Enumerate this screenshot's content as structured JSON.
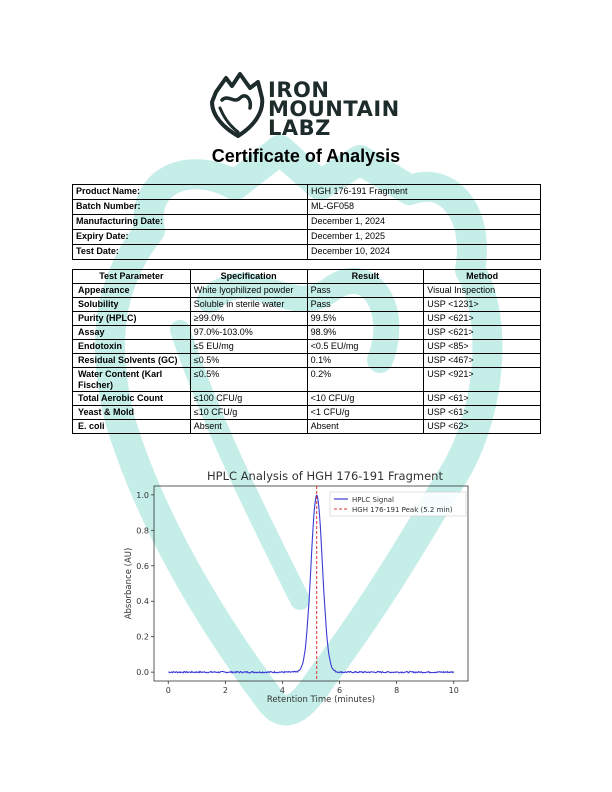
{
  "brand": {
    "line1": "IRON",
    "line2": "MOUNTAIN",
    "line3": "LABZ",
    "logo_icon": "mountain-heart-logo",
    "watermark_icon": "mountain-heart-watermark",
    "watermark_color": "#7fd9cf"
  },
  "title": "Certificate of Analysis",
  "product_info": [
    {
      "label": "Product Name:",
      "value": "HGH 176-191 Fragment"
    },
    {
      "label": "Batch Number:",
      "value": "ML-GF058"
    },
    {
      "label": "Manufacturing Date:",
      "value": "December 1, 2024"
    },
    {
      "label": "Expiry Date:",
      "value": "December 1, 2025"
    },
    {
      "label": "Test Date:",
      "value": "December 10, 2024"
    }
  ],
  "tests": {
    "headers": [
      "Test Parameter",
      "Specification",
      "Result",
      "Method"
    ],
    "rows": [
      {
        "parameter": "Appearance",
        "specification": "White lyophilized powder",
        "result": "Pass",
        "method": "Visual Inspection"
      },
      {
        "parameter": "Solubility",
        "specification": "Soluble in sterile water",
        "result": "Pass",
        "method": "USP <1231>"
      },
      {
        "parameter": "Purity (HPLC)",
        "specification": "≥99.0%",
        "result": "99.5%",
        "method": "USP <621>"
      },
      {
        "parameter": "Assay",
        "specification": "97.0%-103.0%",
        "result": "98.9%",
        "method": "USP <621>"
      },
      {
        "parameter": "Endotoxin",
        "specification": "≤5 EU/mg",
        "result": "<0.5 EU/mg",
        "method": "USP <85>"
      },
      {
        "parameter": "Residual Solvents (GC)",
        "specification": "≤0.5%",
        "result": "0.1%",
        "method": "USP <467>"
      },
      {
        "parameter": "Water Content (Karl Fischer)",
        "specification": "≤0.5%",
        "result": "0.2%",
        "method": "USP <921>"
      },
      {
        "parameter": "Total Aerobic Count",
        "specification": "≤100 CFU/g",
        "result": "<10 CFU/g",
        "method": "USP <61>"
      },
      {
        "parameter": "Yeast & Mold",
        "specification": "≤10 CFU/g",
        "result": "<1 CFU/g",
        "method": "USP <61>"
      },
      {
        "parameter": "E. coli",
        "specification": "Absent",
        "result": "Absent",
        "method": "USP <62>"
      }
    ]
  },
  "chart_data": {
    "type": "line",
    "title": "HPLC Analysis of HGH 176-191 Fragment",
    "xlabel": "Retention Time (minutes)",
    "ylabel": "Absorbance (AU)",
    "xlim": [
      -0.5,
      10.5
    ],
    "ylim": [
      -0.05,
      1.05
    ],
    "xticks": [
      0,
      2,
      4,
      6,
      8,
      10
    ],
    "yticks": [
      0.0,
      0.2,
      0.4,
      0.6,
      0.8,
      1.0
    ],
    "grid": false,
    "legend_position": "top-right",
    "series": [
      {
        "name": "HPLC Signal",
        "color": "#3b3bd6",
        "style": "solid",
        "peak_center": 5.2,
        "peak_height": 1.0,
        "peak_width": 0.2,
        "baseline": 0.0
      }
    ],
    "reference_lines": [
      {
        "name": "HGH 176-191 Peak (5.2 min)",
        "x": 5.2,
        "color": "#e03030",
        "style": "dashed"
      }
    ]
  }
}
